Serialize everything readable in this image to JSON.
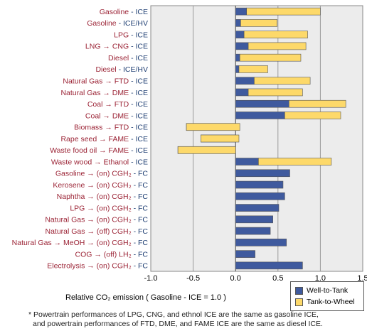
{
  "chart_data": {
    "type": "bar",
    "orientation": "horizontal",
    "stacked": true,
    "categories": [
      {
        "fuel": "Gasoline",
        "powertrain": "ICE"
      },
      {
        "fuel": "Gasoline",
        "powertrain": "ICE/HV"
      },
      {
        "fuel": "LPG",
        "powertrain": "ICE"
      },
      {
        "fuel": "LNG → CNG",
        "powertrain": "ICE"
      },
      {
        "fuel": "Diesel",
        "powertrain": "ICE"
      },
      {
        "fuel": "Diesel",
        "powertrain": "ICE/HV"
      },
      {
        "fuel": "Natural Gas → FTD",
        "powertrain": "ICE"
      },
      {
        "fuel": "Natural Gas → DME",
        "powertrain": "ICE"
      },
      {
        "fuel": "Coal → FTD",
        "powertrain": "ICE"
      },
      {
        "fuel": "Coal → DME",
        "powertrain": "ICE"
      },
      {
        "fuel": "Biomass → FTD",
        "powertrain": "ICE"
      },
      {
        "fuel": "Rape seed → FAME",
        "powertrain": "ICE"
      },
      {
        "fuel": "Waste food oil → FAME",
        "powertrain": "ICE"
      },
      {
        "fuel": "Waste wood → Ethanol",
        "powertrain": "ICE"
      },
      {
        "fuel": "Gasoline → (on) CGH₂",
        "powertrain": "FC"
      },
      {
        "fuel": "Kerosene → (on) CGH₂",
        "powertrain": "FC"
      },
      {
        "fuel": "Naphtha → (on) CGH₂",
        "powertrain": "FC"
      },
      {
        "fuel": "LPG → (on) CGH₂",
        "powertrain": "FC"
      },
      {
        "fuel": "Natural Gas → (on) CGH₂",
        "powertrain": "FC"
      },
      {
        "fuel": "Natural Gas → (off) CGH₂",
        "powertrain": "FC"
      },
      {
        "fuel": "Natural Gas → MeOH → (on) CGH₂",
        "powertrain": "FC"
      },
      {
        "fuel": "COG → (off) LH₂",
        "powertrain": "FC"
      },
      {
        "fuel": "Electrolysis → (on) CGH₂",
        "powertrain": "FC"
      }
    ],
    "series": [
      {
        "name": "Well-to-Tank",
        "color": "#3f5a9e",
        "values": [
          0.13,
          0.06,
          0.1,
          0.15,
          0.05,
          0.04,
          0.22,
          0.15,
          0.63,
          0.58,
          -0.58,
          -0.41,
          -0.68,
          0.27,
          0.64,
          0.56,
          0.58,
          0.51,
          0.44,
          0.41,
          0.6,
          0.23,
          0.79
        ]
      },
      {
        "name": "Tank-to-Wheel",
        "color": "#fdd96a",
        "values": [
          0.87,
          0.43,
          0.75,
          0.68,
          0.72,
          0.34,
          0.66,
          0.64,
          0.67,
          0.66,
          0.63,
          0.45,
          0.68,
          0.86,
          0,
          0,
          0,
          0,
          0,
          0,
          0,
          0,
          0
        ]
      }
    ],
    "x_ticks": [
      "-1.0",
      "-0.5",
      "0.0",
      "0.5",
      "1.0",
      "1.5"
    ],
    "xlim": [
      -1.0,
      1.5
    ],
    "xlabel": "Relative CO₂ emission ( Gasoline - ICE = 1.0 )",
    "ylabel": "",
    "title": "",
    "grid": true,
    "legend_position": "bottom-right"
  },
  "legend": {
    "well_to_tank": "Well-to-Tank",
    "tank_to_wheel": "Tank-to-Wheel"
  },
  "footnote": {
    "line1": "* Powertrain performances of LPG, CNG, and ethnol ICE are the same as gasoline ICE,",
    "line2": "and powertrain performances of FTD, DME, and FAME ICE are the same as diesel ICE."
  },
  "colors": {
    "fuel_label": "#9b2335",
    "powertrain_label": "#1f3f73",
    "plot_background": "#ececec",
    "well_to_tank": "#3f5a9e",
    "tank_to_wheel": "#fdd96a"
  }
}
